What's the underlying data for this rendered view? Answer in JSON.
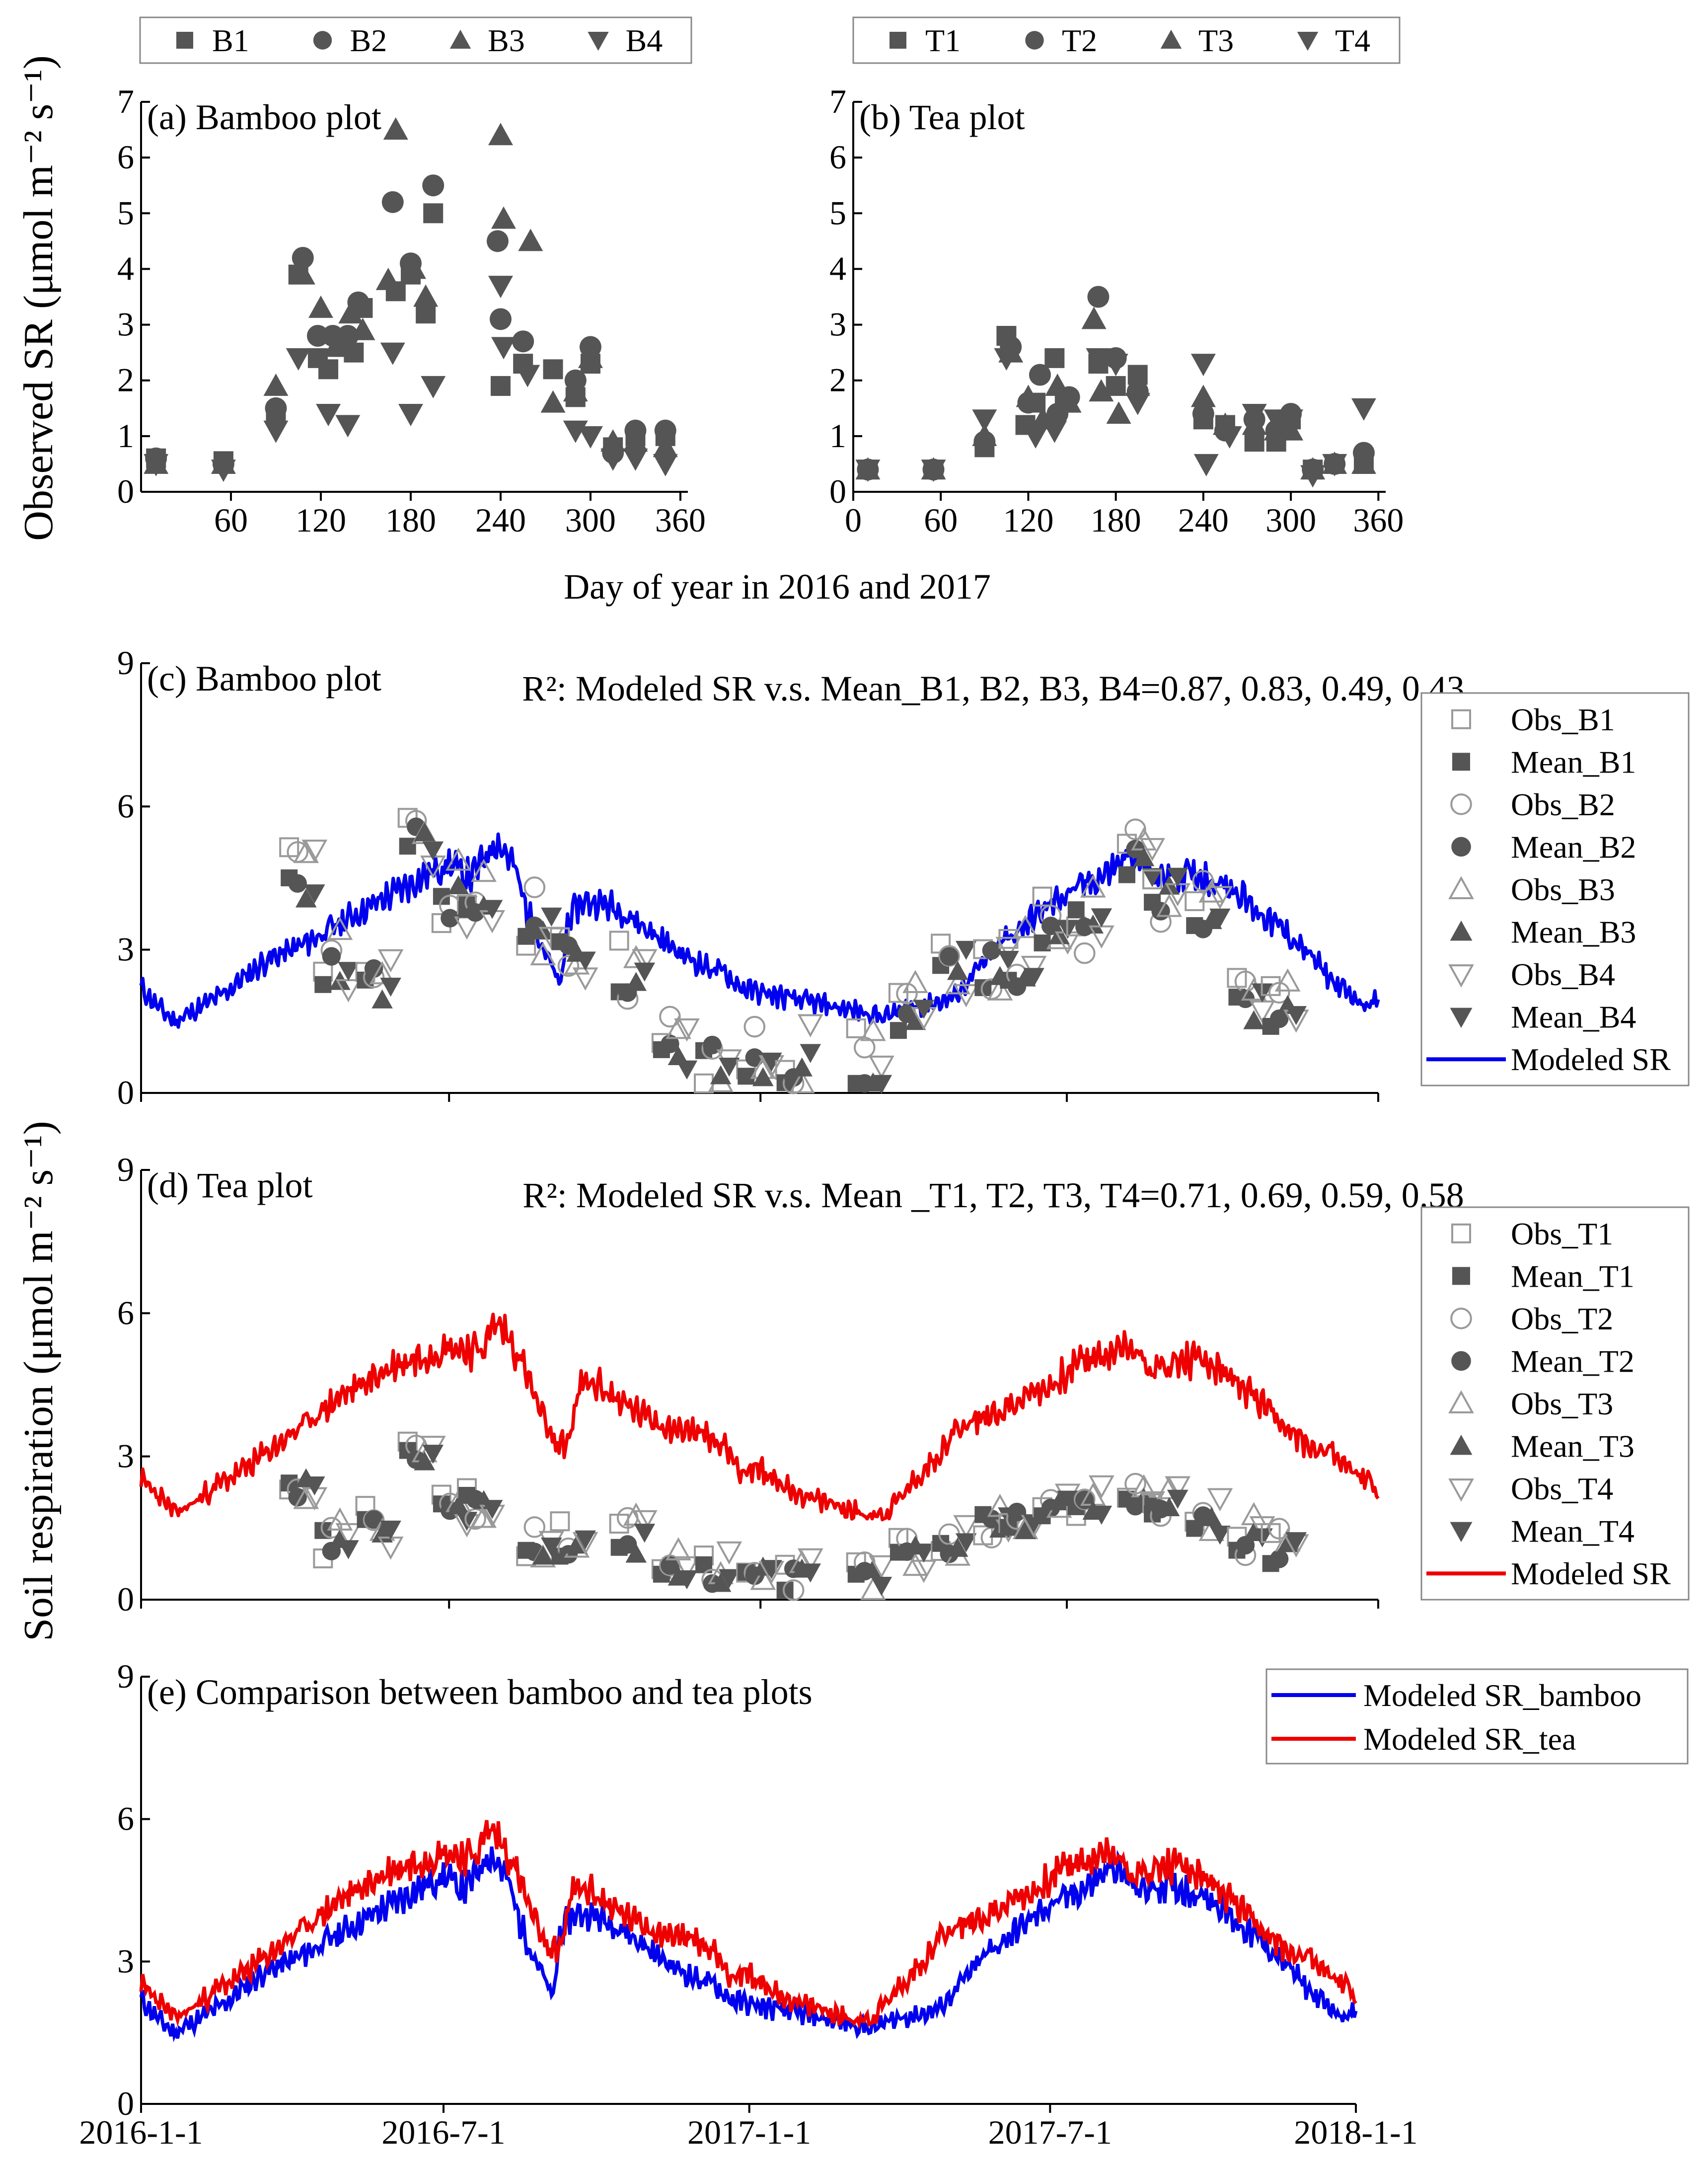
{
  "figure": {
    "top_ylabel": "Observed SR (μmol m⁻² s⁻¹)",
    "top_xlabel": "Day of year in 2016 and 2017",
    "bottom_ylabel": "Soil respiration (μmol m⁻² s⁻¹)"
  },
  "colors": {
    "bamboo": "#0000ee",
    "tea": "#ee0000",
    "mark": "#555555",
    "obs": "#9a9a9a"
  },
  "chart_data": [
    {
      "id": "a",
      "type": "scatter",
      "title": "(a) Bamboo plot",
      "xlim": [
        0,
        365
      ],
      "ylim": [
        0,
        7
      ],
      "xticks": [
        60,
        120,
        180,
        240,
        300,
        360
      ],
      "yticks": [
        0,
        1,
        2,
        3,
        4,
        5,
        6,
        7
      ],
      "legend": [
        "B1",
        "B2",
        "B3",
        "B4"
      ],
      "series": [
        {
          "name": "B1",
          "x": [
            10,
            55,
            90,
            105,
            118,
            125,
            135,
            142,
            148,
            170,
            180,
            190,
            195,
            240,
            255,
            275,
            290,
            300,
            315,
            330,
            350
          ],
          "y": [
            0.6,
            0.55,
            1.4,
            3.9,
            2.4,
            2.2,
            2.6,
            2.5,
            3.3,
            3.6,
            3.9,
            3.2,
            5.0,
            1.9,
            2.3,
            2.2,
            1.7,
            2.3,
            0.8,
            1.0,
            1.0
          ]
        },
        {
          "name": "B2",
          "x": [
            10,
            55,
            90,
            108,
            118,
            128,
            138,
            145,
            168,
            180,
            195,
            238,
            240,
            255,
            290,
            300,
            315,
            330,
            350
          ],
          "y": [
            0.6,
            0.5,
            1.5,
            4.2,
            2.8,
            2.8,
            2.8,
            3.4,
            5.2,
            4.1,
            5.5,
            4.5,
            3.1,
            2.7,
            2.0,
            2.6,
            0.7,
            1.1,
            1.1
          ]
        },
        {
          "name": "B3",
          "x": [
            10,
            55,
            90,
            108,
            120,
            130,
            140,
            148,
            165,
            170,
            182,
            190,
            240,
            242,
            260,
            275,
            290,
            300,
            315,
            330,
            350
          ],
          "y": [
            0.5,
            0.5,
            1.9,
            3.9,
            3.3,
            2.6,
            3.2,
            2.9,
            3.8,
            6.5,
            4.0,
            3.5,
            6.4,
            4.9,
            4.5,
            1.6,
            1.8,
            2.4,
            0.9,
            0.9,
            0.8
          ]
        },
        {
          "name": "B4",
          "x": [
            10,
            55,
            90,
            105,
            125,
            138,
            168,
            180,
            195,
            240,
            242,
            258,
            290,
            300,
            315,
            330,
            350
          ],
          "y": [
            0.5,
            0.4,
            1.1,
            2.4,
            1.4,
            1.2,
            2.5,
            1.4,
            1.9,
            3.7,
            2.6,
            2.1,
            1.1,
            1.0,
            0.6,
            0.6,
            0.5
          ]
        }
      ]
    },
    {
      "id": "b",
      "type": "scatter",
      "title": "(b) Tea plot",
      "xlim": [
        0,
        365
      ],
      "ylim": [
        0,
        7
      ],
      "xticks": [
        0,
        60,
        120,
        180,
        240,
        300,
        360
      ],
      "yticks": [
        0,
        1,
        2,
        3,
        4,
        5,
        6,
        7
      ],
      "legend": [
        "T1",
        "T2",
        "T3",
        "T4"
      ],
      "series": [
        {
          "name": "T1",
          "x": [
            10,
            55,
            90,
            105,
            118,
            125,
            138,
            145,
            168,
            180,
            195,
            240,
            255,
            275,
            290,
            300,
            315,
            330,
            350
          ],
          "y": [
            0.4,
            0.4,
            0.8,
            2.8,
            1.2,
            1.6,
            2.4,
            1.6,
            2.3,
            1.9,
            2.1,
            1.3,
            1.2,
            0.9,
            0.9,
            1.3,
            0.4,
            0.5,
            0.5
          ]
        },
        {
          "name": "T2",
          "x": [
            10,
            55,
            90,
            108,
            120,
            128,
            140,
            148,
            168,
            180,
            195,
            240,
            255,
            275,
            290,
            300,
            315,
            330,
            350
          ],
          "y": [
            0.4,
            0.4,
            0.9,
            2.6,
            1.6,
            2.1,
            1.4,
            1.7,
            3.5,
            2.4,
            1.8,
            1.4,
            1.1,
            1.3,
            1.1,
            1.4,
            0.4,
            0.5,
            0.7
          ]
        },
        {
          "name": "T3",
          "x": [
            10,
            55,
            90,
            108,
            120,
            130,
            140,
            148,
            165,
            170,
            182,
            195,
            240,
            255,
            275,
            290,
            300,
            315,
            330,
            350
          ],
          "y": [
            0.4,
            0.4,
            1.0,
            2.5,
            1.7,
            1.3,
            1.9,
            1.6,
            3.1,
            1.8,
            1.4,
            1.9,
            1.7,
            1.2,
            1.2,
            1.1,
            1.1,
            0.4,
            0.5,
            0.5
          ]
        },
        {
          "name": "T4",
          "x": [
            10,
            55,
            90,
            105,
            125,
            138,
            168,
            180,
            195,
            240,
            242,
            258,
            275,
            290,
            300,
            315,
            330,
            350
          ],
          "y": [
            0.4,
            0.4,
            1.3,
            2.4,
            1.0,
            1.1,
            2.4,
            2.3,
            1.6,
            2.3,
            0.5,
            1.0,
            1.4,
            1.3,
            1.3,
            0.3,
            0.5,
            1.5
          ]
        }
      ]
    },
    {
      "id": "c",
      "type": "line+scatter",
      "title": "(c) Bamboo plot",
      "r2_text": "R²: Modeled SR v.s. Mean_B1, B2, B3, B4=0.87, 0.83, 0.49, 0.43",
      "xlim": [
        0,
        731
      ],
      "ylim": [
        0,
        9
      ],
      "xticks": [
        0,
        182,
        366,
        547,
        731
      ],
      "yticks": [
        0,
        3,
        6,
        9
      ],
      "legend": [
        "Obs_B1",
        "Mean_B1",
        "Obs_B2",
        "Mean_B2",
        "Obs_B3",
        "Mean_B3",
        "Obs_B4",
        "Mean_B4",
        "Modeled SR"
      ],
      "modeled_knots": {
        "x": [
          0,
          10,
          20,
          30,
          40,
          50,
          60,
          75,
          90,
          105,
          120,
          135,
          150,
          165,
          182,
          195,
          210,
          220,
          228,
          238,
          248,
          252,
          260,
          270,
          285,
          300,
          315,
          330,
          345,
          355,
          366,
          380,
          395,
          410,
          425,
          440,
          455,
          470,
          480,
          495,
          510,
          525,
          540,
          547,
          555,
          570,
          585,
          600,
          615,
          630,
          645,
          660,
          675,
          690,
          705,
          720,
          731
        ],
        "y": [
          2.2,
          1.8,
          1.5,
          1.7,
          1.9,
          2.1,
          2.4,
          2.8,
          3.0,
          3.3,
          3.6,
          3.9,
          4.2,
          4.5,
          4.8,
          4.5,
          5.3,
          4.8,
          3.8,
          3.0,
          2.2,
          3.6,
          4.0,
          4.0,
          3.8,
          3.4,
          3.0,
          2.7,
          2.5,
          2.2,
          2.1,
          2.0,
          1.9,
          1.8,
          1.7,
          1.6,
          1.8,
          1.9,
          2.0,
          2.6,
          3.2,
          3.6,
          4.0,
          4.2,
          4.3,
          4.6,
          5.0,
          4.5,
          4.6,
          4.5,
          4.3,
          3.8,
          3.4,
          2.9,
          2.3,
          1.9,
          1.9
        ]
      },
      "modeled_noise": 0.18,
      "obs_days": [
        95,
        115,
        140,
        165,
        185,
        200,
        235,
        255,
        290,
        315,
        340,
        365,
        388,
        430,
        455,
        480,
        505,
        520,
        540,
        560,
        590,
        605,
        630,
        655,
        675
      ],
      "obs_base": [
        4.3,
        2.5,
        2.3,
        5.2,
        4.0,
        3.8,
        3.4,
        3.0,
        2.3,
        0.7,
        0.7,
        0.7,
        0.6,
        0.4,
        1.5,
        2.7,
        2.6,
        2.6,
        3.2,
        3.5,
        4.8,
        4.2,
        3.8,
        1.9,
        1.6
      ],
      "obs_spread": 0.8
    },
    {
      "id": "d",
      "type": "line+scatter",
      "title": "(d) Tea plot",
      "r2_text": "R²: Modeled SR v.s. Mean _T1, T2, T3, T4=0.71, 0.69, 0.59, 0.58",
      "xlim": [
        0,
        731
      ],
      "ylim": [
        0,
        9
      ],
      "xticks": [
        0,
        182,
        366,
        547,
        731
      ],
      "yticks": [
        0,
        3,
        6,
        9
      ],
      "legend": [
        "Obs_T1",
        "Mean_T1",
        "Obs_T2",
        "Mean_T2",
        "Obs_T3",
        "Mean_T3",
        "Obs_T4",
        "Mean_T4",
        "Modeled SR"
      ],
      "modeled_knots": {
        "x": [
          0,
          10,
          20,
          30,
          45,
          60,
          75,
          90,
          105,
          120,
          135,
          150,
          165,
          182,
          200,
          210,
          215,
          225,
          235,
          245,
          252,
          260,
          270,
          285,
          300,
          315,
          330,
          345,
          355,
          366,
          380,
          395,
          410,
          425,
          440,
          455,
          470,
          480,
          495,
          510,
          525,
          540,
          547,
          555,
          570,
          585,
          600,
          615,
          630,
          645,
          660,
          675,
          690,
          705,
          720,
          731
        ],
        "y": [
          2.5,
          2.2,
          1.8,
          2.0,
          2.4,
          2.7,
          3.1,
          3.5,
          3.9,
          4.3,
          4.6,
          4.9,
          5.1,
          5.3,
          5.2,
          5.8,
          5.6,
          5.0,
          4.0,
          3.2,
          3.3,
          4.5,
          4.5,
          4.1,
          3.8,
          3.6,
          3.5,
          3.2,
          2.7,
          2.7,
          2.4,
          2.1,
          2.0,
          1.8,
          1.8,
          2.4,
          3.0,
          3.5,
          3.8,
          4.0,
          4.3,
          4.5,
          4.8,
          5.0,
          5.1,
          5.3,
          4.8,
          5.0,
          5.0,
          4.6,
          4.2,
          3.6,
          3.2,
          3.1,
          2.6,
          2.3
        ]
      },
      "modeled_noise": 0.18,
      "obs_days": [
        95,
        115,
        140,
        165,
        185,
        200,
        235,
        255,
        290,
        315,
        340,
        365,
        388,
        430,
        455,
        480,
        505,
        520,
        540,
        560,
        590,
        605,
        630,
        655,
        675
      ],
      "obs_base": [
        2.3,
        1.2,
        1.5,
        3.0,
        1.8,
        2.0,
        1.0,
        1.1,
        1.2,
        0.5,
        0.5,
        0.6,
        0.4,
        0.4,
        0.9,
        1.2,
        1.6,
        1.6,
        2.0,
        1.9,
        2.0,
        2.0,
        1.6,
        1.2,
        1.0
      ],
      "obs_spread": 0.5
    },
    {
      "id": "e",
      "type": "line",
      "title": "(e) Comparison between bamboo and tea plots",
      "xlim": [
        0,
        731
      ],
      "ylim": [
        0,
        9
      ],
      "xticks": [
        0,
        182,
        366,
        547,
        731
      ],
      "xticklabels": [
        "2016-1-1",
        "2016-7-1",
        "2017-1-1",
        "2017-7-1",
        "2018-1-1"
      ],
      "yticks": [
        0,
        3,
        6,
        9
      ],
      "legend": [
        "Modeled SR_bamboo",
        "Modeled SR_tea"
      ]
    }
  ]
}
